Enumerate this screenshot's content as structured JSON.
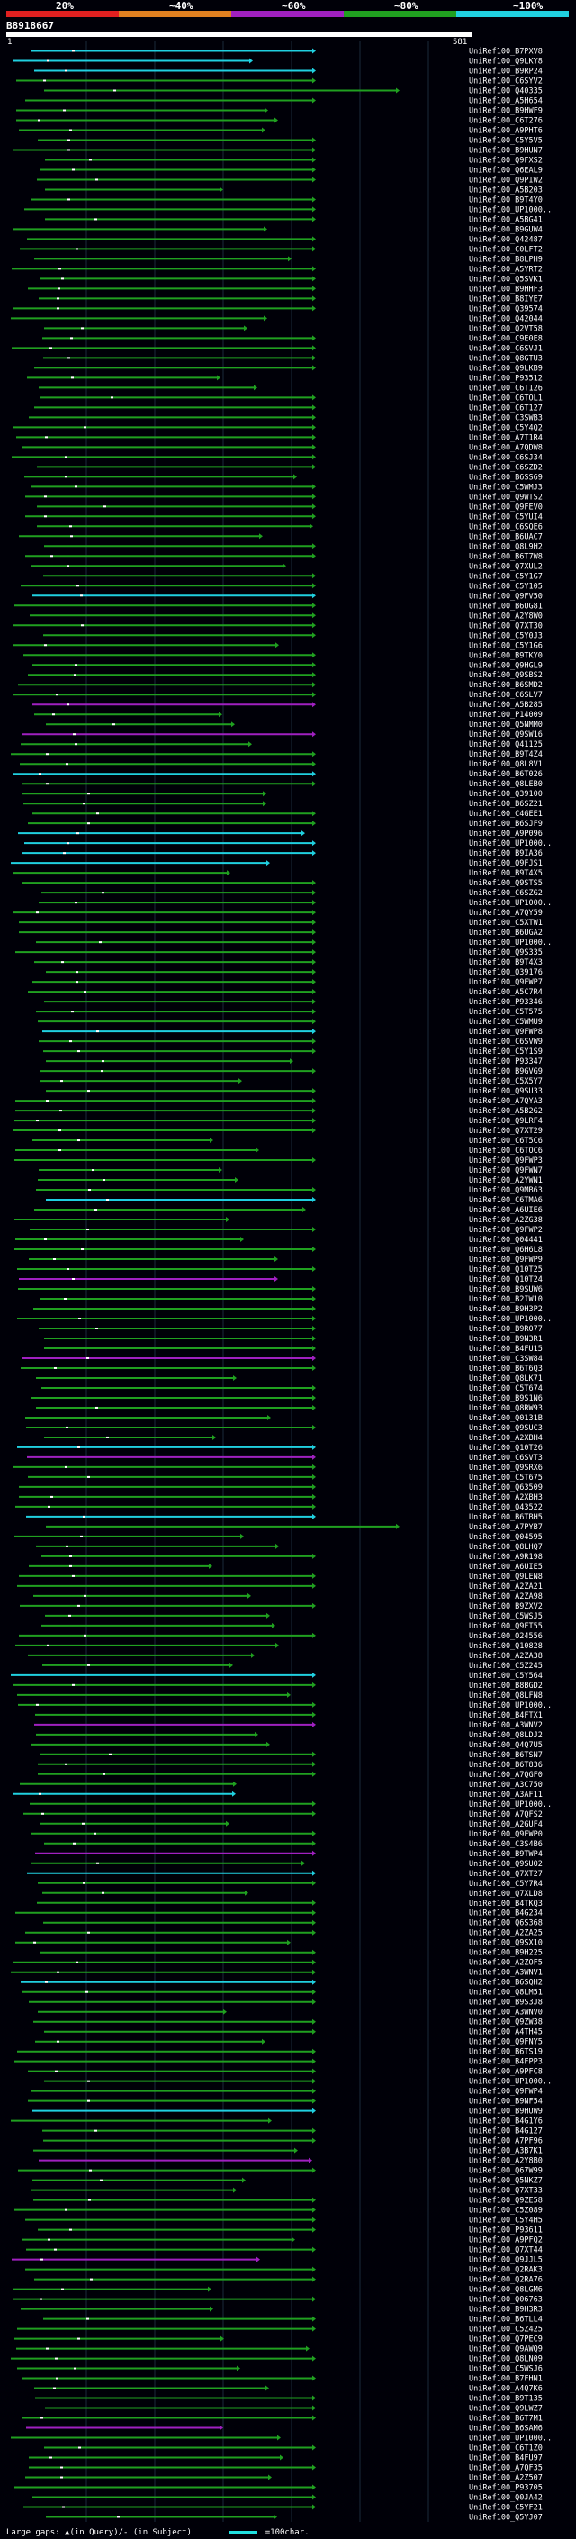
{
  "header": {
    "query_id": "B8918667",
    "start_label": "1",
    "end_label": "581",
    "pct_labels": [
      "20%",
      "~40%",
      "~60%",
      "~80%",
      "~100%"
    ],
    "colors": [
      "#e02020",
      "#e08020",
      "#a020c0",
      "#20a020",
      "#20d0e0"
    ]
  },
  "footer": {
    "gap_text": "Large gaps: ▲(in Query)/- (in Subject)",
    "scale_text": "=100char."
  },
  "chart_data": {
    "type": "alignment-overview",
    "query_length": 581,
    "hits": [
      "UniRef100_B7PXV8",
      "UniRef100_Q9LKY8",
      "UniRef100_B9RP24",
      "UniRef100_C6SYV2",
      "UniRef100_Q40335",
      "UniRef100_A5H654",
      "UniRef100_B9HWF9",
      "UniRef100_C6T276",
      "UniRef100_A9PHT6",
      "UniRef100_C5Y5V5",
      "UniRef100_B9HUN7",
      "UniRef100_Q9FXS2",
      "UniRef100_Q6EAL9",
      "UniRef100_Q9PIW2",
      "UniRef100_A5B203",
      "UniRef100_B9T4Y0",
      "UniRef100_UP1000..",
      "UniRef100_A5BG41",
      "UniRef100_B9GUW4",
      "UniRef100_Q42487",
      "UniRef100_C0LFT2",
      "UniRef100_B8LPH9",
      "UniRef100_A5YRT2",
      "UniRef100_Q5SVK1",
      "UniRef100_B9HHF3",
      "UniRef100_B8IYE7",
      "UniRef100_Q39574",
      "UniRef100_Q42044",
      "UniRef100_Q2VT58",
      "UniRef100_C9E0E8",
      "UniRef100_C6SVJ1",
      "UniRef100_Q8GTU3",
      "UniRef100_Q9LKB9",
      "UniRef100_P93512",
      "UniRef100_C6T126",
      "UniRef100_C6TOL1",
      "UniRef100_C6T127",
      "UniRef100_C3SWB3",
      "UniRef100_C5Y4Q2",
      "UniRef100_A7T1R4",
      "UniRef100_A7QDW8",
      "UniRef100_C6SJ34",
      "UniRef100_C6SZD2",
      "UniRef100_B6SS69",
      "UniRef100_C5WMJ3",
      "UniRef100_Q9WTS2",
      "UniRef100_Q9FEV0",
      "UniRef100_C5YUI4",
      "UniRef100_C6SQE6",
      "UniRef100_B6UAC7",
      "UniRef100_Q8L9H2",
      "UniRef100_B6T7W8",
      "UniRef100_Q7XUL2",
      "UniRef100_C5Y1G7",
      "UniRef100_C5Y105",
      "UniRef100_Q9FV50",
      "UniRef100_B6UG81",
      "UniRef100_A2Y8W0",
      "UniRef100_Q7XT30",
      "UniRef100_C5Y0J3",
      "UniRef100_C5Y1G6",
      "UniRef100_B9TKY0",
      "UniRef100_Q9HGL9",
      "UniRef100_Q9SBS2",
      "UniRef100_B6SMD2",
      "UniRef100_C6SLV7",
      "UniRef100_A5B285",
      "UniRef100_P14009",
      "UniRef100_Q5NMM0",
      "UniRef100_Q9SW16",
      "UniRef100_Q41125",
      "UniRef100_B9T4Z4",
      "UniRef100_Q8L8V1",
      "UniRef100_B6T026",
      "UniRef100_Q8LEB0",
      "UniRef100_Q39100",
      "UniRef100_B6SZ21",
      "UniRef100_C4GEE1",
      "UniRef100_B6SJF9",
      "UniRef100_A9P096",
      "UniRef100_UP1000..",
      "UniRef100_B9IA36",
      "UniRef100_Q9FJS1",
      "UniRef100_B9T4X5",
      "UniRef100_Q9STS5",
      "UniRef100_C6SZG2",
      "UniRef100_UP1000..",
      "UniRef100_A7QY59",
      "UniRef100_C5XTW1",
      "UniRef100_B6UGA2",
      "UniRef100_UP1000..",
      "UniRef100_Q9S335",
      "UniRef100_B9T4X3",
      "UniRef100_Q39176",
      "UniRef100_Q9FWP7",
      "UniRef100_A5C7R4",
      "UniRef100_P93346",
      "UniRef100_C5T575",
      "UniRef100_C5WMU9",
      "UniRef100_Q9FWP8",
      "UniRef100_C6SVW9",
      "UniRef100_C5Y1S9",
      "UniRef100_P93347",
      "UniRef100_B9GVG9",
      "UniRef100_C5X5Y7",
      "UniRef100_Q9SU33",
      "UniRef100_A7QYA3",
      "UniRef100_A5B2G2",
      "UniRef100_Q9LRF4",
      "UniRef100_Q7XT29",
      "UniRef100_C6T5C6",
      "UniRef100_C6TOC6",
      "UniRef100_Q9FWP3",
      "UniRef100_Q9FWN7",
      "UniRef100_A2YWN1",
      "UniRef100_Q9MB63",
      "UniRef100_C6TMA6",
      "UniRef100_A6UIE6",
      "UniRef100_A2ZG38",
      "UniRef100_Q9FWP2",
      "UniRef100_Q04441",
      "UniRef100_Q6H6L8",
      "UniRef100_Q9FWP9",
      "UniRef100_Q10T25",
      "UniRef100_Q10T24",
      "UniRef100_B9SUW6",
      "UniRef100_B2IW10",
      "UniRef100_B9H3P2",
      "UniRef100_UP1000..",
      "UniRef100_B9R077",
      "UniRef100_B9N3R1",
      "UniRef100_B4FU15",
      "UniRef100_C3SW84",
      "UniRef100_B6T6Q3",
      "UniRef100_Q8LK71",
      "UniRef100_C5T674",
      "UniRef100_B9S1N6",
      "UniRef100_Q8RW93",
      "UniRef100_Q0131B",
      "UniRef100_Q9SUC3",
      "UniRef100_A2XBH4",
      "UniRef100_Q10T26",
      "UniRef100_C6SVT3",
      "UniRef100_Q9SRX6",
      "UniRef100_C5T675",
      "UniRef100_Q63509",
      "UniRef100_A2XBH3",
      "UniRef100_Q43522",
      "UniRef100_B6TBH5",
      "UniRef100_A7PYB7",
      "UniRef100_Q04595",
      "UniRef100_Q8LHQ7",
      "UniRef100_A9R198",
      "UniRef100_A6UIE5",
      "UniRef100_Q9LEN8",
      "UniRef100_A2ZA21",
      "UniRef100_A2ZA98",
      "UniRef100_B9ZXV2",
      "UniRef100_C5WSJ5",
      "UniRef100_Q9FT55",
      "UniRef100_O24556",
      "UniRef100_Q10828",
      "UniRef100_A2ZA38",
      "UniRef100_C5Z245",
      "UniRef100_C5Y564",
      "UniRef100_B8BGD2",
      "UniRef100_Q8LFN8",
      "UniRef100_UP1000..",
      "UniRef100_B4FTX1",
      "UniRef100_A3WNV2",
      "UniRef100_Q8LDJ2",
      "UniRef100_Q4Q7U5",
      "UniRef100_B6TSN7",
      "UniRef100_B6T836",
      "UniRef100_A7QGF0",
      "UniRef100_A3C750",
      "UniRef100_A3AF11",
      "UniRef100_UP1000..",
      "UniRef100_A7QFS2",
      "UniRef100_A2GUF4",
      "UniRef100_Q9FWP0",
      "UniRef100_C3S4B6",
      "UniRef100_B9TWP4",
      "UniRef100_Q9SUO2",
      "UniRef100_Q7XT27",
      "UniRef100_C5Y7R4",
      "UniRef100_Q7XLD8",
      "UniRef100_B4TKQ3",
      "UniRef100_B4G234",
      "UniRef100_Q6S368",
      "UniRef100_A2ZA25",
      "UniRef100_Q9SX10",
      "UniRef100_B9H225",
      "UniRef100_A2ZOF5",
      "UniRef100_A3WNV1",
      "UniRef100_B6SQH2",
      "UniRef100_Q8LM51",
      "UniRef100_B9S3J8",
      "UniRef100_A3WNV0",
      "UniRef100_Q9ZW38",
      "UniRef100_A4TH45",
      "UniRef100_Q9FNY5",
      "UniRef100_B6TS19",
      "UniRef100_B4FPP3",
      "UniRef100_A9PFC8",
      "UniRef100_UP1000..",
      "UniRef100_Q9FWP4",
      "UniRef100_B9NF54",
      "UniRef100_B9HUW9",
      "UniRef100_B4G1Y6",
      "UniRef100_B4G127",
      "UniRef100_A7PF96",
      "UniRef100_A3B7K1",
      "UniRef100_A2Y8B0",
      "UniRef100_Q67W99",
      "UniRef100_Q5NKZ7",
      "UniRef100_Q7XT33",
      "UniRef100_Q9ZE58",
      "UniRef100_C5Z089",
      "UniRef100_C5Y4H5",
      "UniRef100_P93611",
      "UniRef100_A9PFQ2",
      "UniRef100_Q7XT44",
      "UniRef100_Q9JJL5",
      "UniRef100_Q2RAK3",
      "UniRef100_Q2RA76",
      "UniRef100_Q8LGM6",
      "UniRef100_Q06763",
      "UniRef100_B9H3R3",
      "UniRef100_B6TLL4",
      "UniRef100_C5Z425",
      "UniRef100_Q7PEC9",
      "UniRef100_Q9AWQ9",
      "UniRef100_Q8LN09",
      "UniRef100_C5WSJ6",
      "UniRef100_B7FHN1",
      "UniRef100_A4Q7K6",
      "UniRef100_B9T135",
      "UniRef100_Q9LWZ7",
      "UniRef100_B6T7M1",
      "UniRef100_B6SAM6",
      "UniRef100_UP1000..",
      "UniRef100_C6T1Z0",
      "UniRef100_B4FU97",
      "UniRef100_A7QF35",
      "UniRef100_A2Z507",
      "UniRef100_P93705",
      "UniRef100_Q0JA42",
      "UniRef100_C5YF21",
      "UniRef100_Q5YJ07"
    ],
    "scale": "=100char."
  }
}
